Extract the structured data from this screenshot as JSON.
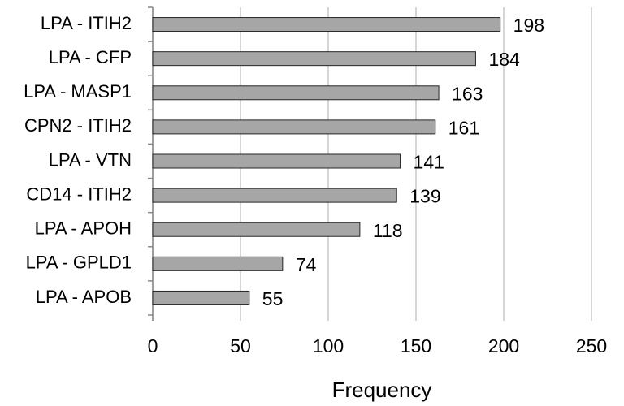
{
  "chart_data": {
    "type": "bar",
    "orientation": "horizontal",
    "xlabel": "Frequency",
    "categories": [
      "LPA - ITIH2",
      "LPA - CFP",
      "LPA - MASP1",
      "CPN2 - ITIH2",
      "LPA - VTN",
      "CD14 - ITIH2",
      "LPA - APOH",
      "LPA - GPLD1",
      "LPA - APOB"
    ],
    "values": [
      198,
      184,
      163,
      161,
      141,
      139,
      118,
      74,
      55
    ],
    "color": "#a6a6a6",
    "xlim": [
      0,
      250
    ],
    "xticks": [
      0,
      50,
      100,
      150,
      200,
      250
    ],
    "grid": true
  }
}
